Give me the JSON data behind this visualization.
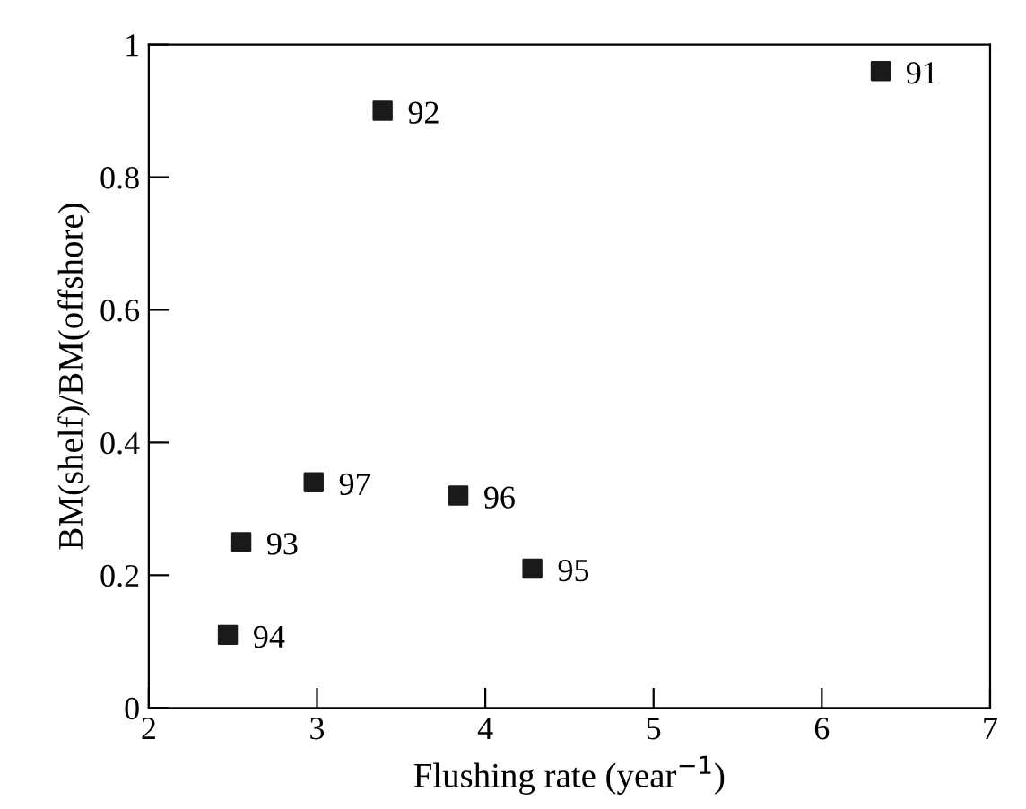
{
  "chart_data": {
    "type": "scatter",
    "xlabel": "Flushing rate (year$^{−1}$)",
    "ylabel": "BM(shelf)/BM(offshore)",
    "series": [
      {
        "color": "#1a1a1a",
        "x": [
          6.35,
          3.39,
          2.55,
          2.47,
          4.28,
          3.84,
          2.98
        ],
        "values": [
          0.96,
          0.9,
          0.25,
          0.11,
          0.21,
          0.32,
          0.34
        ]
      }
    ],
    "annotations": [
      {
        "text": "91",
        "x": 6.35,
        "y": 0.96
      },
      {
        "text": "92",
        "x": 3.39,
        "y": 0.9
      },
      {
        "text": "93",
        "x": 2.55,
        "y": 0.25
      },
      {
        "text": "94",
        "x": 2.47,
        "y": 0.11
      },
      {
        "text": "95",
        "x": 4.28,
        "y": 0.21
      },
      {
        "text": "96",
        "x": 3.84,
        "y": 0.32
      },
      {
        "text": "97",
        "x": 2.98,
        "y": 0.34
      }
    ],
    "xlim": [
      2,
      7
    ],
    "ylim": [
      0,
      1
    ],
    "xticks": [
      2,
      3,
      4,
      5,
      6,
      7
    ],
    "yticks": [
      0,
      0.2,
      0.4,
      0.6,
      0.8,
      1
    ],
    "marker": "square",
    "grid": false,
    "legend": false
  }
}
